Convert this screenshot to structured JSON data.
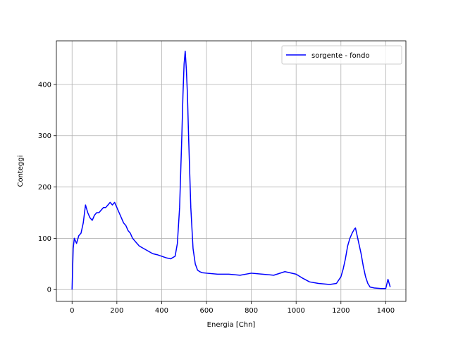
{
  "chart_data": {
    "type": "line",
    "xlabel": "Energia [Chn]",
    "ylabel": "Conteggi",
    "xlim": [
      -70,
      1490
    ],
    "ylim": [
      -23,
      485
    ],
    "x_ticks": [
      0,
      200,
      400,
      600,
      800,
      1000,
      1200,
      1400
    ],
    "y_ticks": [
      0,
      100,
      200,
      300,
      400
    ],
    "grid": true,
    "legend_position": "top-right",
    "series": [
      {
        "name": "sorgente - fondo",
        "color": "#0000ff",
        "x": [
          0,
          5,
          10,
          20,
          30,
          40,
          50,
          60,
          70,
          80,
          90,
          100,
          110,
          120,
          130,
          140,
          150,
          160,
          170,
          180,
          190,
          200,
          210,
          220,
          230,
          240,
          250,
          260,
          270,
          280,
          290,
          300,
          320,
          340,
          360,
          380,
          400,
          420,
          440,
          460,
          470,
          480,
          485,
          490,
          495,
          500,
          505,
          510,
          515,
          520,
          525,
          530,
          540,
          550,
          560,
          570,
          580,
          600,
          650,
          700,
          750,
          800,
          850,
          900,
          950,
          1000,
          1030,
          1060,
          1100,
          1150,
          1180,
          1200,
          1210,
          1220,
          1230,
          1240,
          1250,
          1260,
          1265,
          1270,
          1280,
          1290,
          1300,
          1310,
          1320,
          1330,
          1350,
          1380,
          1400,
          1410,
          1420
        ],
        "y": [
          0,
          80,
          100,
          90,
          105,
          110,
          130,
          165,
          150,
          140,
          135,
          145,
          150,
          150,
          155,
          160,
          160,
          165,
          170,
          165,
          170,
          160,
          150,
          140,
          130,
          125,
          115,
          110,
          100,
          95,
          90,
          85,
          80,
          75,
          70,
          68,
          65,
          62,
          60,
          65,
          90,
          160,
          230,
          300,
          380,
          440,
          465,
          430,
          380,
          300,
          230,
          160,
          80,
          50,
          38,
          35,
          33,
          32,
          30,
          30,
          28,
          32,
          30,
          28,
          35,
          30,
          22,
          15,
          12,
          10,
          12,
          25,
          40,
          60,
          85,
          100,
          110,
          118,
          120,
          110,
          90,
          70,
          45,
          25,
          12,
          5,
          3,
          2,
          2,
          20,
          5
        ]
      }
    ]
  }
}
